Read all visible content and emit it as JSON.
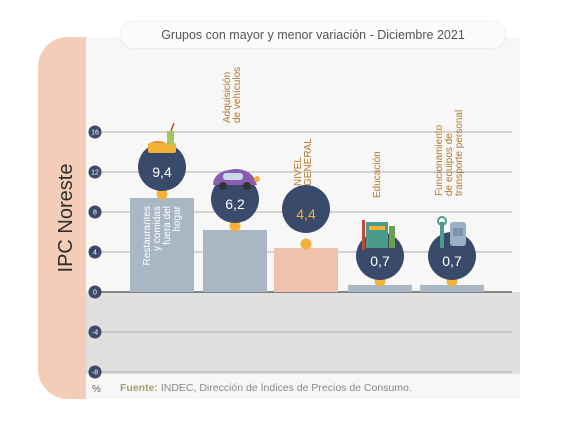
{
  "side_label": "IPC Noreste",
  "source": {
    "label": "Fuente:",
    "text": "INDEC, Dirección de Índices de Precios de Consumo."
  },
  "unit": "%",
  "colors": {
    "bar": "#a9b6c4",
    "bar_highlight": "#efc2ad",
    "bubble": "#3a4a6a",
    "dot": "#f4b13a",
    "label_text": "#b5782a",
    "negative_zone": "#e0e0e0",
    "side_tab": "#f4cdb8"
  },
  "chart_data": {
    "type": "bar",
    "title": "Grupos con mayor y menor variación - Diciembre 2021",
    "xlabel": "",
    "ylabel": "%",
    "ylim": [
      -8,
      16
    ],
    "yticks": [
      16,
      12,
      8,
      4,
      0,
      -4,
      -8
    ],
    "grid": true,
    "categories": [
      "Restaurantes y comidas fuera del hogar",
      "Adquisición de vehículos",
      "NIVEL GENERAL",
      "Educación",
      "Funcionamiento de equipos de transporte personal"
    ],
    "category_lines": [
      [
        "Restaurantes",
        "y comidas",
        "fuera del",
        "hogar"
      ],
      [
        "Adquisición",
        "de vehículos"
      ],
      [
        "NIVEL",
        "GENERAL"
      ],
      [
        "Educación"
      ],
      [
        "Funcionamiento",
        "de equipos de",
        "transporte personal"
      ]
    ],
    "values": [
      9.4,
      6.2,
      4.4,
      0.7,
      0.7
    ],
    "value_labels": [
      "9,4",
      "6,2",
      "4,4",
      "0,7",
      "0,7"
    ],
    "highlight_index": 2,
    "icons": [
      "food-icon",
      "car-icon",
      "",
      "books-icon",
      "tools-icon"
    ]
  }
}
